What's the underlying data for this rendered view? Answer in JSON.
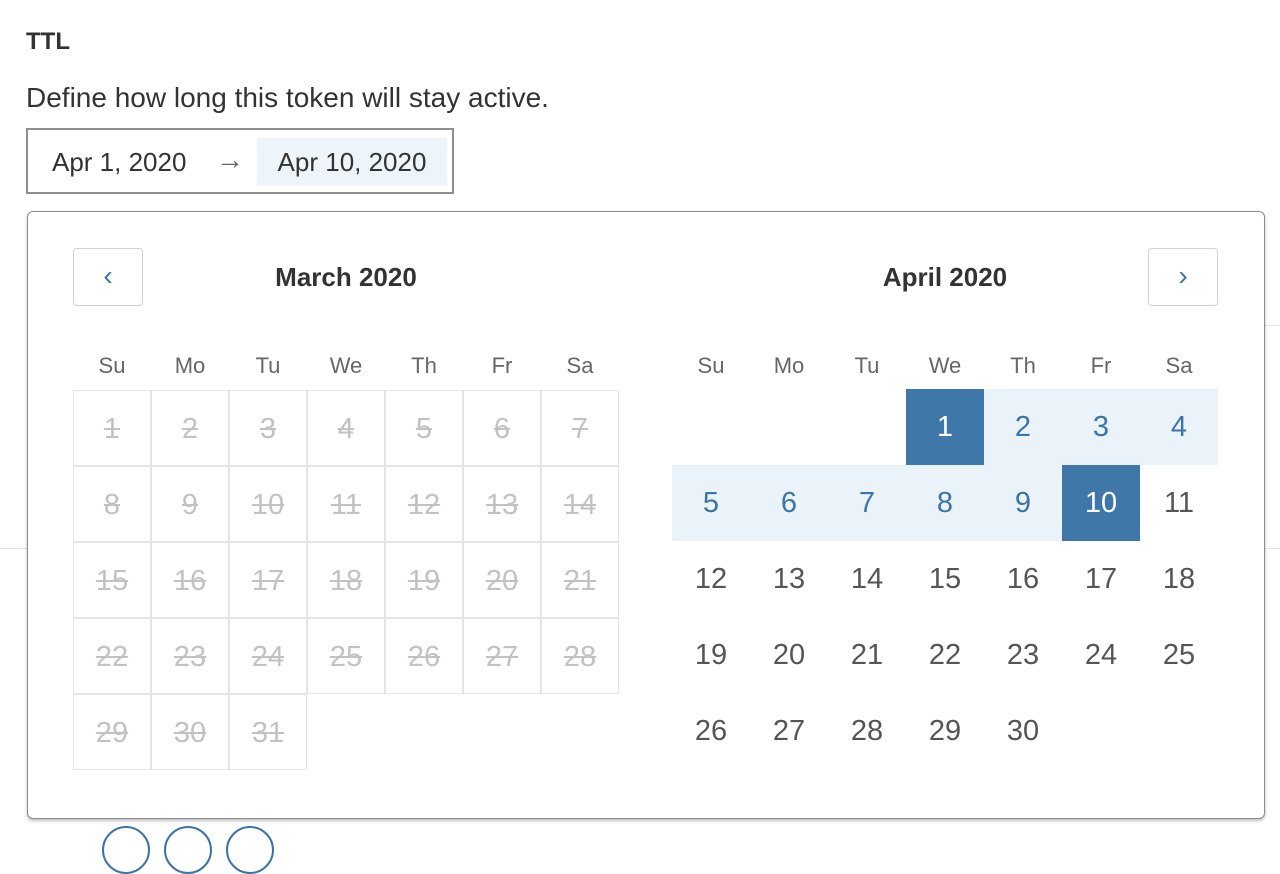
{
  "section": {
    "title": "TTL",
    "description": "Define how long this token will stay active."
  },
  "range": {
    "start": "Apr 1, 2020",
    "arrow": "→",
    "end": "Apr 10, 2020"
  },
  "calendar": {
    "prev_icon": "‹",
    "next_icon": "›",
    "weekdays": [
      "Su",
      "Mo",
      "Tu",
      "We",
      "Th",
      "Fr",
      "Sa"
    ],
    "months": [
      {
        "name": "March 2020",
        "first_weekday": 0,
        "days": 31,
        "disabled": true
      },
      {
        "name": "April 2020",
        "first_weekday": 3,
        "days": 30,
        "disabled": false
      }
    ],
    "selected_start": 1,
    "selected_end": 10
  },
  "colors": {
    "accent": "#3f77a8",
    "range_bg": "#eaf3fa",
    "disabled": "#c2c2c2"
  }
}
